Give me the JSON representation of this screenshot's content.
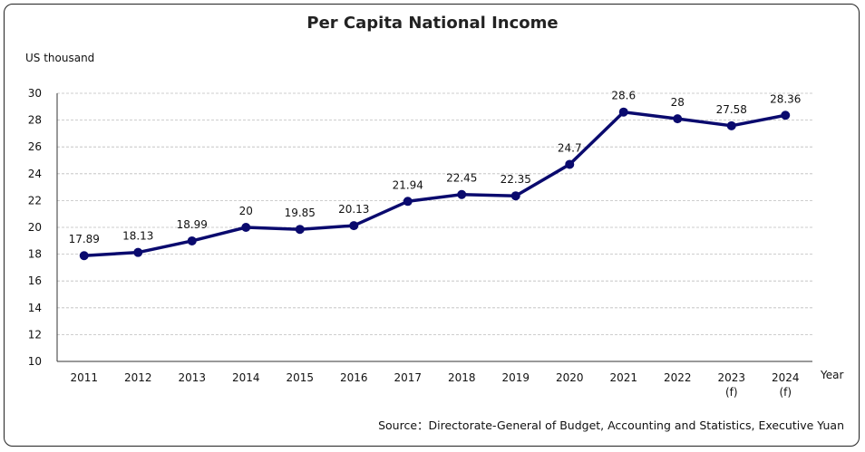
{
  "chart_data": {
    "type": "line",
    "title": "Per Capita National Income",
    "ylabel": "US thousand",
    "xlabel": "Year",
    "ylim": [
      10,
      30
    ],
    "yticks": [
      10,
      12,
      14,
      16,
      18,
      20,
      22,
      24,
      26,
      28,
      30
    ],
    "grid": true,
    "categories": [
      "2011",
      "2012",
      "2013",
      "2014",
      "2015",
      "2016",
      "2017",
      "2018",
      "2019",
      "2020",
      "2021",
      "2022",
      "2023",
      "2024"
    ],
    "category_sublabels": [
      "",
      "",
      "",
      "",
      "",
      "",
      "",
      "",
      "",
      "",
      "",
      "",
      "(f)",
      "(f)"
    ],
    "series": [
      {
        "values": [
          17.89,
          18.13,
          18.99,
          20,
          19.85,
          20.13,
          21.94,
          22.45,
          22.35,
          24.7,
          28.6,
          28.1,
          27.58,
          28.36
        ],
        "labels": [
          "17.89",
          "18.13",
          "18.99",
          "20",
          "19.85",
          "20.13",
          "21.94",
          "22.45",
          "22.35",
          "24.7",
          "28.6",
          "28",
          "27.58",
          "28.36"
        ],
        "color": "#0a0a6e"
      }
    ],
    "source": "Source：Directorate-General of Budget, Accounting and Statistics, Executive Yuan"
  }
}
